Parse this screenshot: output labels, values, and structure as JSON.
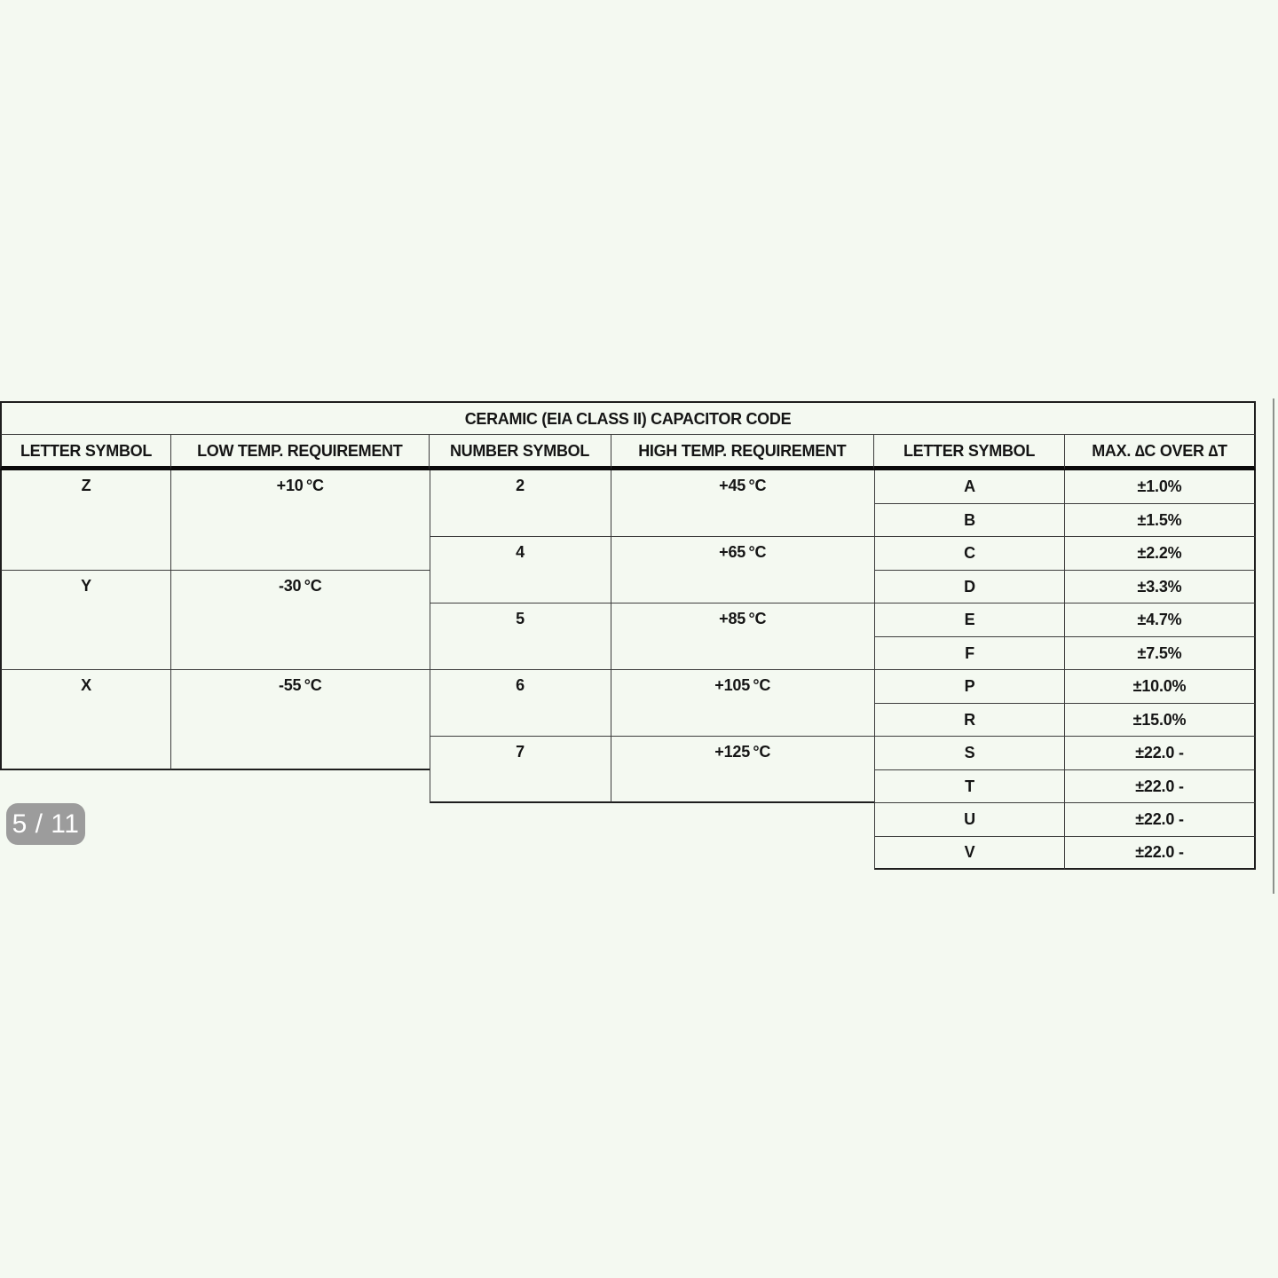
{
  "page": {
    "background_color": "#f4f9f1",
    "pager": {
      "label": "5 / 11"
    }
  },
  "table": {
    "title": "CERAMIC (EIA CLASS II) CAPACITOR CODE",
    "headers": [
      "LETTER SYMBOL",
      "LOW TEMP. REQUIREMENT",
      "NUMBER SYMBOL",
      "HIGH TEMP. REQUIREMENT",
      "LETTER SYMBOL",
      "MAX. ∆C OVER ∆T"
    ],
    "low_temp": [
      {
        "letter": "Z",
        "requirement": "+10 °C"
      },
      {
        "letter": "Y",
        "requirement": "-30 °C"
      },
      {
        "letter": "X",
        "requirement": "-55 °C"
      }
    ],
    "high_temp": [
      {
        "number": "2",
        "requirement": "+45 °C"
      },
      {
        "number": "4",
        "requirement": "+65 °C"
      },
      {
        "number": "5",
        "requirement": "+85 °C"
      },
      {
        "number": "6",
        "requirement": "+105 °C"
      },
      {
        "number": "7",
        "requirement": "+125 °C"
      }
    ],
    "tolerance": [
      {
        "letter": "A",
        "value": "±1.0%"
      },
      {
        "letter": "B",
        "value": "±1.5%"
      },
      {
        "letter": "C",
        "value": "±2.2%"
      },
      {
        "letter": "D",
        "value": "±3.3%"
      },
      {
        "letter": "E",
        "value": "±4.7%"
      },
      {
        "letter": "F",
        "value": "±7.5%"
      },
      {
        "letter": "P",
        "value": "±10.0%"
      },
      {
        "letter": "R",
        "value": "±15.0%"
      },
      {
        "letter": "S",
        "value": "±22.0 -"
      },
      {
        "letter": "T",
        "value": "±22.0 -"
      },
      {
        "letter": "U",
        "value": "±22.0 -"
      },
      {
        "letter": "V",
        "value": "±22.0 -"
      }
    ]
  }
}
